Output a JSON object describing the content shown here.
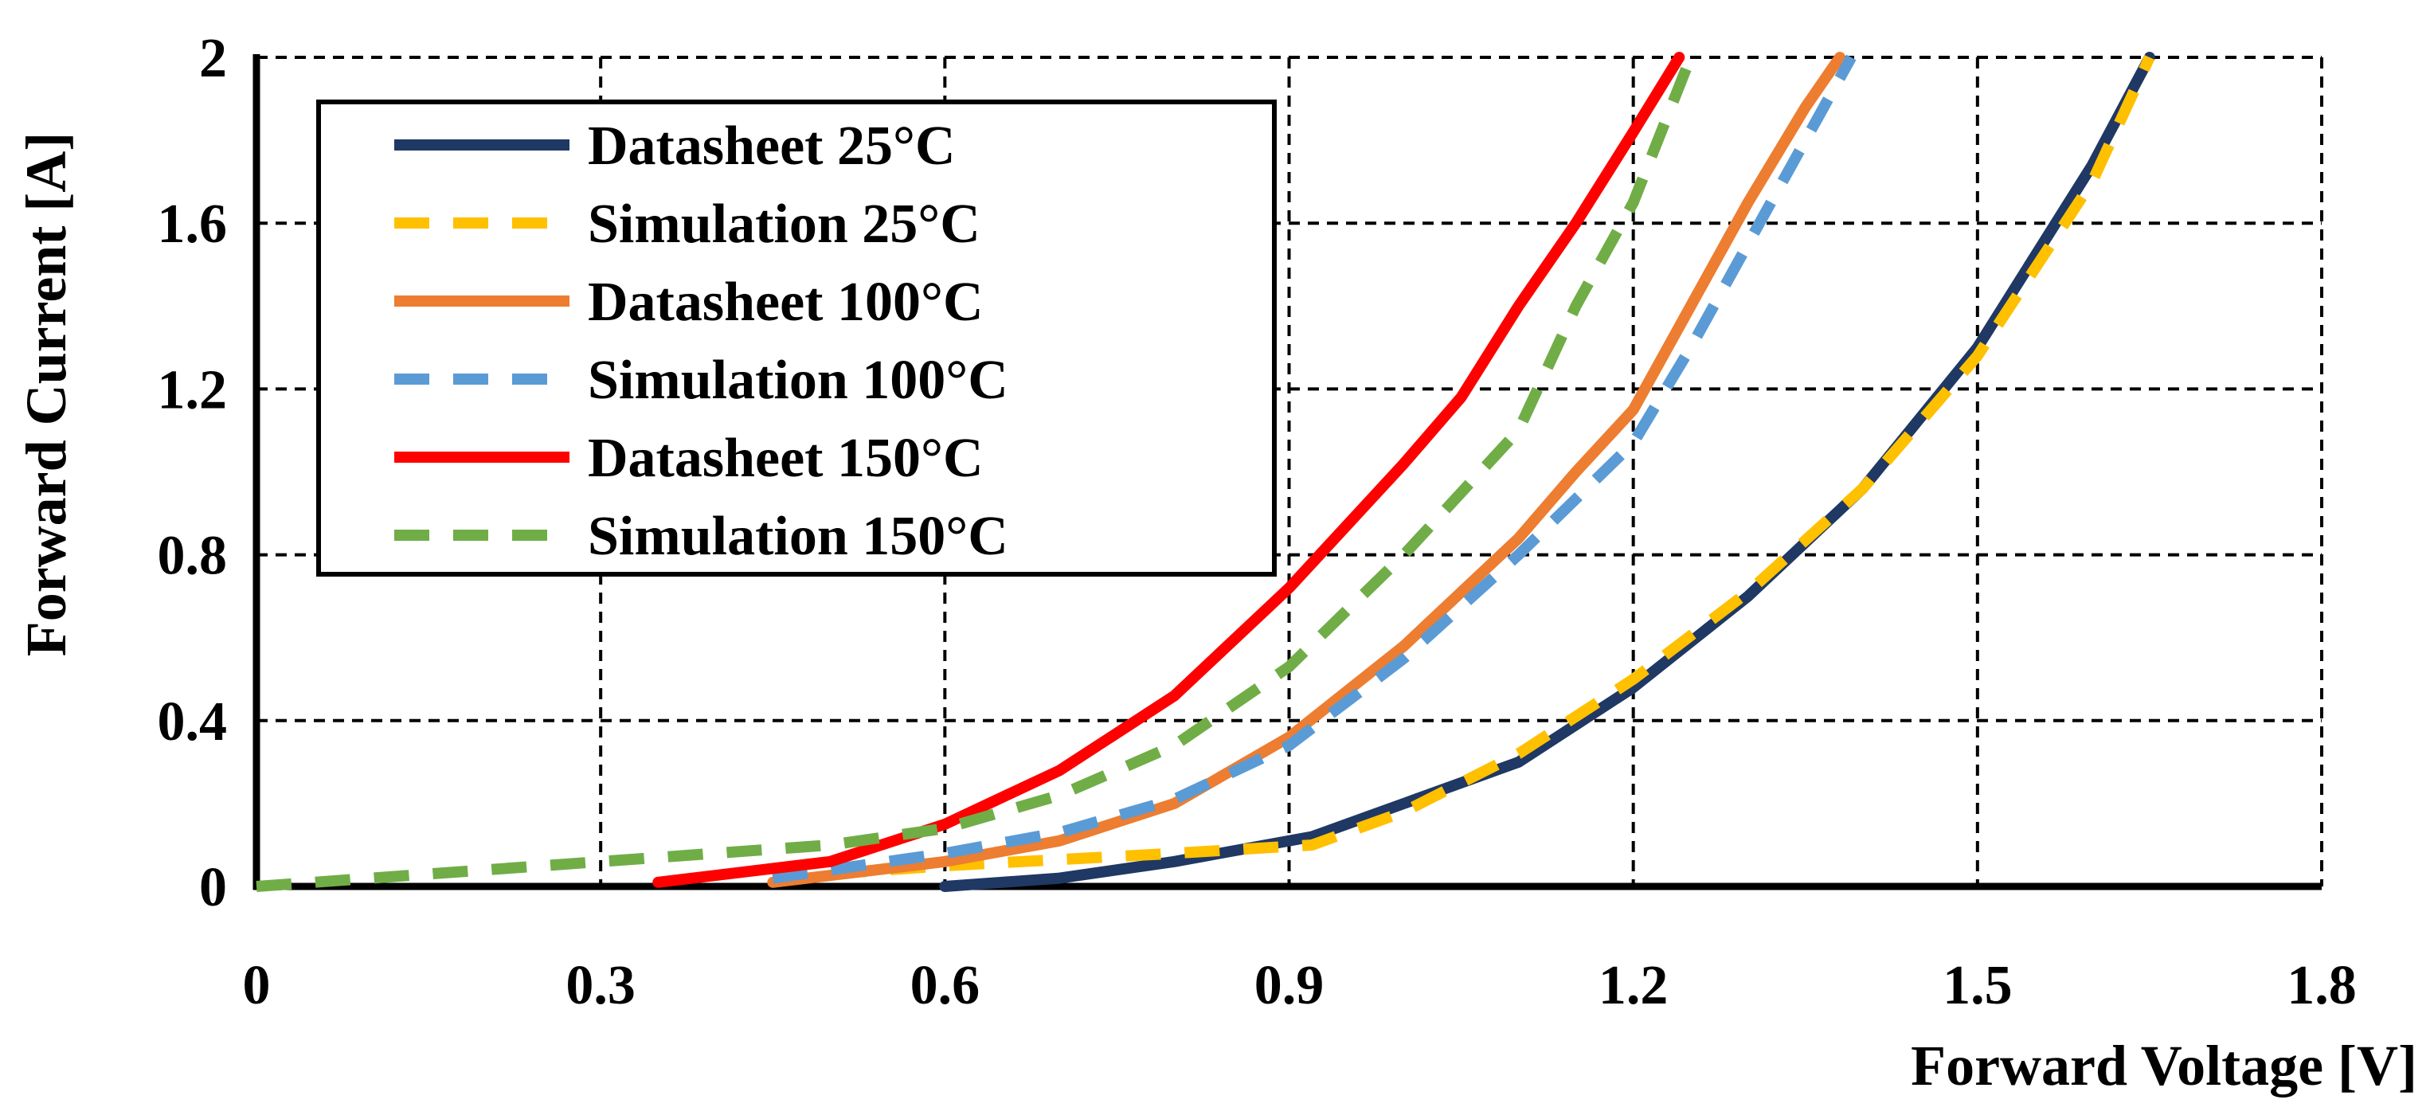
{
  "chart_data": {
    "type": "line",
    "xlabel": "Forward Voltage [V]",
    "ylabel": "Forward Current [A]",
    "xlim": [
      0,
      1.8
    ],
    "ylim": [
      0,
      2
    ],
    "x_ticks": [
      "0",
      "0.3",
      "0.6",
      "0.9",
      "1.2",
      "1.5",
      "1.8"
    ],
    "y_ticks": [
      "0",
      "0.4",
      "0.8",
      "1.2",
      "1.6",
      "2"
    ],
    "grid": true,
    "legend_position": "top-left",
    "series": [
      {
        "name": "Datasheet 25°C",
        "color": "#1F3864",
        "dash": "solid",
        "x": [
          0.6,
          0.7,
          0.8,
          0.92,
          1.0,
          1.1,
          1.2,
          1.3,
          1.4,
          1.5,
          1.6,
          1.65
        ],
        "y": [
          0.0,
          0.02,
          0.06,
          0.12,
          0.2,
          0.3,
          0.48,
          0.7,
          0.96,
          1.3,
          1.74,
          2.0
        ]
      },
      {
        "name": "Simulation 25°C",
        "color": "#FFC000",
        "dash": "dashed",
        "x": [
          0.45,
          0.6,
          0.8,
          0.92,
          1.0,
          1.1,
          1.2,
          1.3,
          1.4,
          1.5,
          1.6,
          1.65
        ],
        "y": [
          0.02,
          0.05,
          0.08,
          0.1,
          0.18,
          0.32,
          0.5,
          0.71,
          0.96,
          1.28,
          1.7,
          2.0
        ]
      },
      {
        "name": "Datasheet 100°C",
        "color": "#ED7D31",
        "dash": "solid",
        "x": [
          0.45,
          0.6,
          0.7,
          0.8,
          0.9,
          1.0,
          1.1,
          1.15,
          1.2,
          1.25,
          1.3,
          1.35,
          1.38
        ],
        "y": [
          0.01,
          0.06,
          0.11,
          0.2,
          0.36,
          0.58,
          0.84,
          1.0,
          1.15,
          1.4,
          1.65,
          1.88,
          2.0
        ]
      },
      {
        "name": "Simulation 100°C",
        "color": "#5B9BD5",
        "dash": "dashed",
        "x": [
          0.45,
          0.6,
          0.7,
          0.8,
          0.9,
          1.0,
          1.1,
          1.2,
          1.25,
          1.3,
          1.35,
          1.39
        ],
        "y": [
          0.02,
          0.08,
          0.13,
          0.21,
          0.34,
          0.55,
          0.8,
          1.07,
          1.3,
          1.55,
          1.8,
          2.0
        ]
      },
      {
        "name": "Datasheet 150°C",
        "color": "#FF0000",
        "dash": "solid",
        "x": [
          0.35,
          0.5,
          0.6,
          0.7,
          0.8,
          0.9,
          1.0,
          1.05,
          1.1,
          1.15,
          1.2,
          1.24
        ],
        "y": [
          0.01,
          0.06,
          0.15,
          0.28,
          0.46,
          0.72,
          1.02,
          1.18,
          1.4,
          1.6,
          1.82,
          2.0
        ]
      },
      {
        "name": "Simulation 150°C",
        "color": "#70AD47",
        "dash": "dashed",
        "x": [
          0.0,
          0.1,
          0.2,
          0.3,
          0.4,
          0.5,
          0.6,
          0.7,
          0.8,
          0.9,
          1.0,
          1.1,
          1.15,
          1.2,
          1.25
        ],
        "y": [
          0.0,
          0.02,
          0.04,
          0.06,
          0.08,
          0.1,
          0.14,
          0.22,
          0.34,
          0.53,
          0.8,
          1.1,
          1.4,
          1.65,
          2.0
        ]
      }
    ]
  }
}
